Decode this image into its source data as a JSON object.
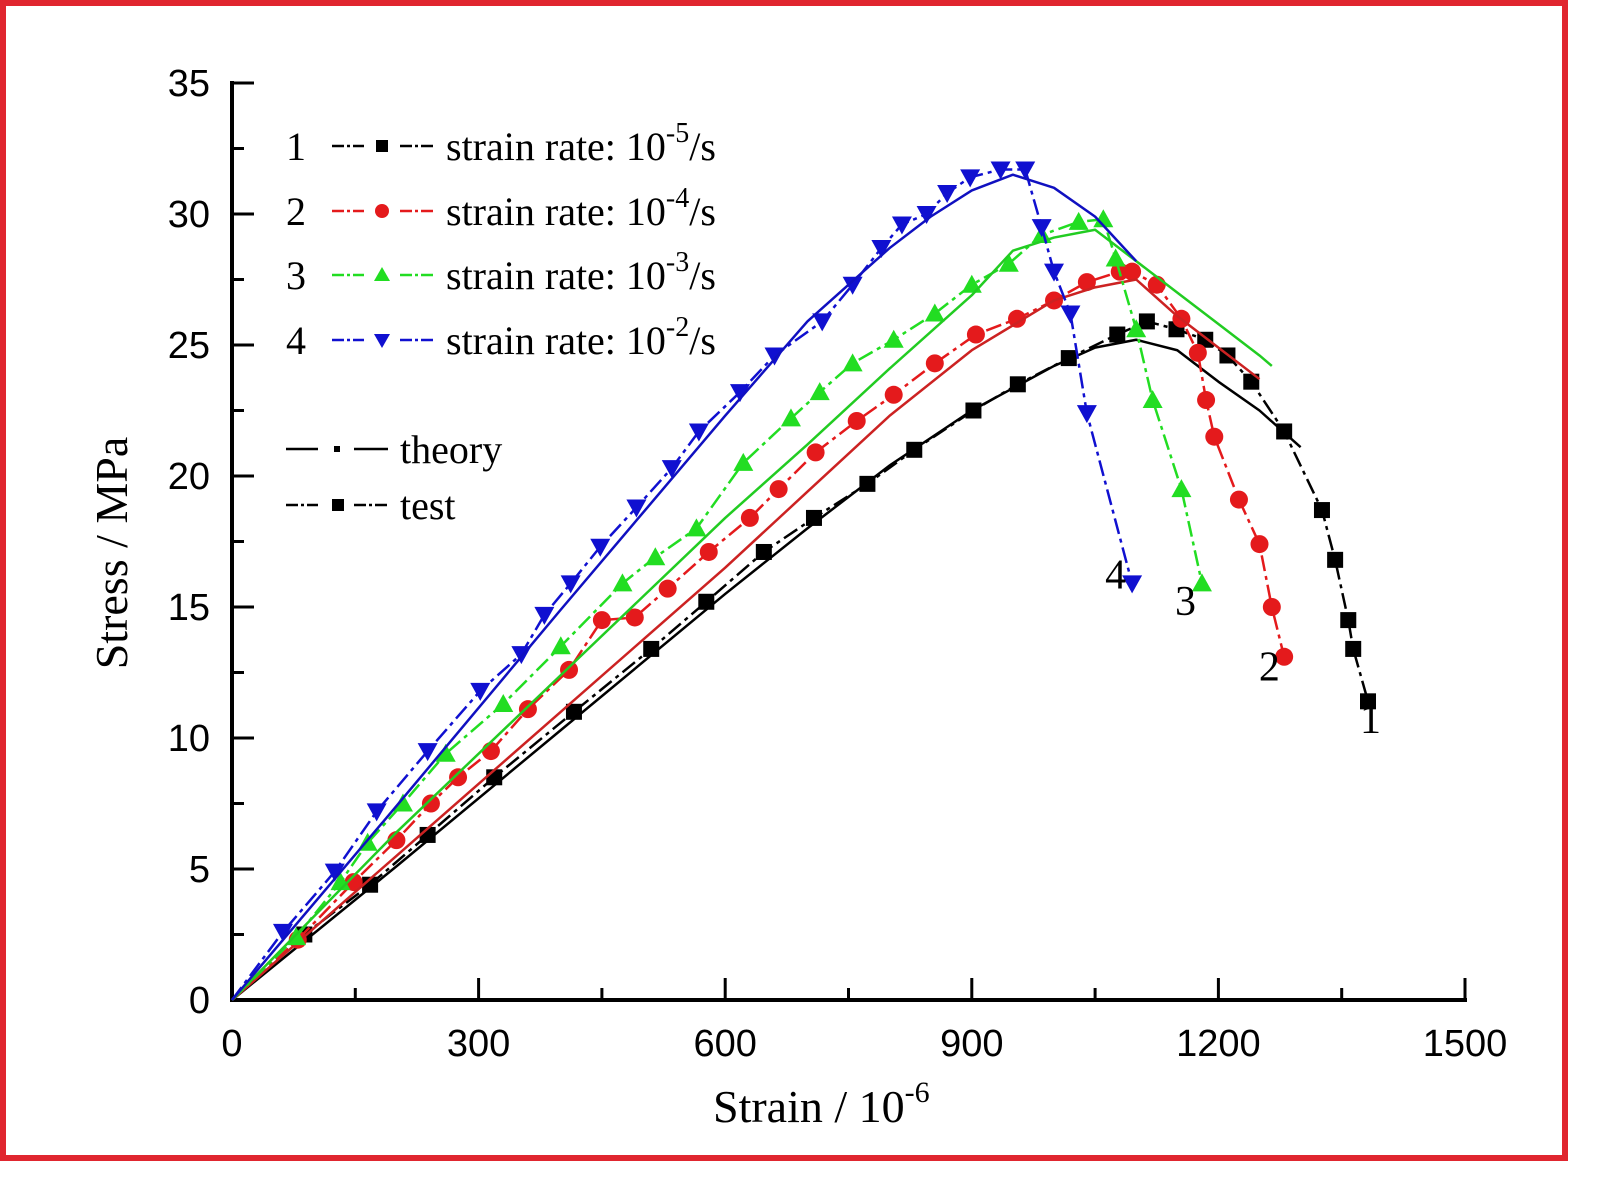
{
  "chart_data": {
    "type": "line",
    "title": "",
    "xlabel": "Strain / 10",
    "xlabel_exponent": "-6",
    "ylabel": "Stress / MPa",
    "xlim": [
      0,
      1500
    ],
    "ylim": [
      0,
      35
    ],
    "xticks": [
      0,
      300,
      600,
      900,
      1200,
      1500
    ],
    "yticks": [
      0,
      5,
      10,
      15,
      20,
      25,
      30,
      35
    ],
    "x_minor_step": 150,
    "y_minor_step": 2.5,
    "grid": false,
    "legend_position": "top-left",
    "legend": [
      {
        "number": "1",
        "label": "strain rate: 10",
        "exponent": "-5",
        "unit": "/s",
        "color": "#000000",
        "marker": "square"
      },
      {
        "number": "2",
        "label": "strain rate: 10",
        "exponent": "-4",
        "unit": "/s",
        "color": "#e41a1c",
        "marker": "circle"
      },
      {
        "number": "3",
        "label": "strain rate: 10",
        "exponent": "-3",
        "unit": "/s",
        "color": "#22dd22",
        "marker": "triangle-up"
      },
      {
        "number": "4",
        "label": "strain rate: 10",
        "exponent": "-2",
        "unit": "/s",
        "color": "#1010d0",
        "marker": "triangle-down"
      }
    ],
    "style_legend": [
      {
        "label": "theory",
        "style": "solid"
      },
      {
        "label": "test",
        "style": "dash-dot-dot with markers"
      }
    ],
    "curve_labels": [
      {
        "text": "1",
        "x": 1385,
        "y": 10.2
      },
      {
        "text": "2",
        "x": 1262,
        "y": 12.2
      },
      {
        "text": "3",
        "x": 1160,
        "y": 14.7
      },
      {
        "text": "4",
        "x": 1075,
        "y": 15.7
      }
    ],
    "series": [
      {
        "name": "1 test (strain rate 10^-5/s)",
        "kind": "test",
        "color": "#000000",
        "marker": "square",
        "x": [
          0,
          88,
          168,
          238,
          319,
          416,
          510,
          577,
          647,
          708,
          773,
          830,
          902,
          956,
          1018,
          1077,
          1113,
          1149,
          1184,
          1211,
          1240,
          1280,
          1326,
          1342,
          1358,
          1364,
          1382
        ],
        "y": [
          0,
          2.5,
          4.4,
          6.3,
          8.5,
          11.0,
          13.4,
          15.2,
          17.1,
          18.4,
          19.7,
          21.0,
          22.5,
          23.5,
          24.5,
          25.4,
          25.9,
          25.6,
          25.2,
          24.6,
          23.6,
          21.7,
          18.7,
          16.8,
          14.5,
          13.4,
          11.4
        ]
      },
      {
        "name": "1 theory (strain rate 10^-5/s)",
        "kind": "theory",
        "color": "#000000",
        "x": [
          0,
          200,
          400,
          600,
          700,
          800,
          900,
          1000,
          1050,
          1100,
          1150,
          1200,
          1250,
          1300
        ],
        "y": [
          0,
          5.1,
          10.3,
          15.5,
          18.0,
          20.4,
          22.5,
          24.2,
          24.9,
          25.2,
          24.8,
          23.6,
          22.5,
          21.1
        ]
      },
      {
        "name": "2 test (strain rate 10^-4/s)",
        "kind": "test",
        "color": "#e41a1c",
        "marker": "circle",
        "x": [
          0,
          80,
          148,
          200,
          242,
          275,
          315,
          360,
          410,
          450,
          490,
          530,
          580,
          630,
          665,
          710,
          760,
          805,
          855,
          905,
          955,
          1000,
          1040,
          1080,
          1095,
          1125,
          1155,
          1175,
          1185,
          1195,
          1225,
          1250,
          1265,
          1280
        ],
        "y": [
          0,
          2.3,
          4.5,
          6.1,
          7.5,
          8.5,
          9.5,
          11.1,
          12.6,
          14.5,
          14.6,
          15.7,
          17.1,
          18.4,
          19.5,
          20.9,
          22.1,
          23.1,
          24.3,
          25.4,
          26.0,
          26.7,
          27.4,
          27.8,
          27.8,
          27.3,
          26.0,
          24.7,
          22.9,
          21.5,
          19.1,
          17.4,
          15.0,
          13.1
        ]
      },
      {
        "name": "2 theory (strain rate 10^-4/s)",
        "kind": "theory",
        "color": "#cc2222",
        "x": [
          0,
          200,
          400,
          600,
          700,
          800,
          900,
          1000,
          1050,
          1100,
          1150,
          1200,
          1250
        ],
        "y": [
          0,
          5.5,
          11.0,
          16.5,
          19.4,
          22.3,
          24.8,
          26.7,
          27.2,
          27.5,
          26.1,
          24.9,
          23.7
        ]
      },
      {
        "name": "3 test (strain rate 10^-3/s)",
        "kind": "test",
        "color": "#22dd22",
        "marker": "triangle-up",
        "x": [
          0,
          78,
          132,
          165,
          208,
          260,
          330,
          400,
          475,
          515,
          565,
          622,
          680,
          715,
          755,
          805,
          855,
          900,
          945,
          985,
          1030,
          1060,
          1075,
          1100,
          1120,
          1155,
          1180
        ],
        "y": [
          0,
          2.4,
          4.5,
          6.0,
          7.5,
          9.4,
          11.3,
          13.5,
          15.9,
          16.9,
          18.0,
          20.5,
          22.2,
          23.2,
          24.3,
          25.2,
          26.2,
          27.3,
          28.1,
          29.2,
          29.7,
          29.8,
          28.3,
          25.6,
          22.9,
          19.5,
          15.9
        ]
      },
      {
        "name": "3 theory (strain rate 10^-3/s)",
        "kind": "theory",
        "color": "#22cc22",
        "x": [
          0,
          200,
          400,
          600,
          700,
          800,
          900,
          950,
          1000,
          1050,
          1100,
          1150,
          1200,
          1250,
          1265
        ],
        "y": [
          0,
          6.4,
          12.4,
          18.4,
          21.2,
          24.1,
          26.9,
          28.6,
          29.1,
          29.4,
          28.2,
          27.0,
          25.8,
          24.6,
          24.2
        ]
      },
      {
        "name": "4 test (strain rate 10^-2/s)",
        "kind": "test",
        "color": "#1010d0",
        "marker": "triangle-down",
        "x": [
          0,
          62,
          125,
          176,
          238,
          302,
          352,
          380,
          412,
          448,
          492,
          535,
          568,
          618,
          660,
          718,
          755,
          790,
          815,
          845,
          870,
          898,
          935,
          965,
          985,
          1000,
          1020,
          1040,
          1095
        ],
        "y": [
          0,
          2.6,
          4.9,
          7.2,
          9.5,
          11.8,
          13.2,
          14.7,
          15.9,
          17.3,
          18.8,
          20.3,
          21.7,
          23.2,
          24.6,
          25.9,
          27.3,
          28.7,
          29.6,
          30.0,
          30.8,
          31.4,
          31.7,
          31.7,
          29.5,
          27.8,
          26.2,
          22.4,
          15.9
        ]
      },
      {
        "name": "4 theory (strain rate 10^-2/s)",
        "kind": "theory",
        "color": "#1010c0",
        "x": [
          0,
          200,
          400,
          600,
          700,
          800,
          850,
          900,
          950,
          1000,
          1050,
          1100
        ],
        "y": [
          0,
          7.4,
          14.9,
          22.3,
          25.9,
          28.7,
          29.9,
          30.9,
          31.5,
          31.0,
          29.9,
          28.2
        ]
      }
    ]
  }
}
